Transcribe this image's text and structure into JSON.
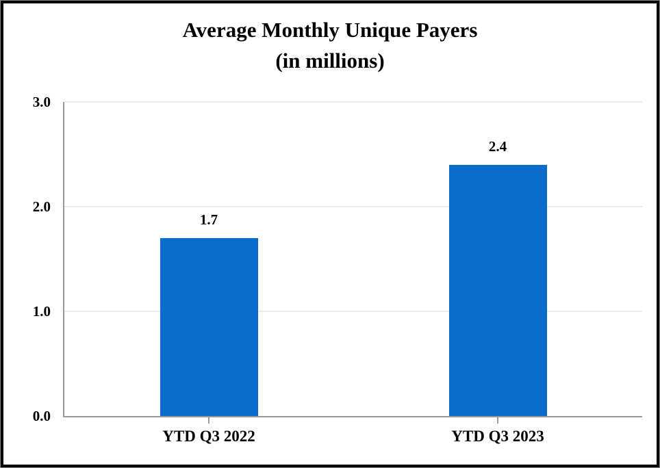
{
  "chart_data": {
    "type": "bar",
    "title": "Average Monthly Unique Payers",
    "subtitle": "(in millions)",
    "categories": [
      "YTD Q3 2022",
      "YTD Q3 2023"
    ],
    "values": [
      1.7,
      2.4
    ],
    "value_labels": [
      "1.7",
      "2.4"
    ],
    "xlabel": "",
    "ylabel": "",
    "ylim": [
      0,
      3.0
    ],
    "y_ticks": [
      0.0,
      1.0,
      2.0,
      3.0
    ],
    "y_tick_labels": [
      "0.0",
      "1.0",
      "2.0",
      "3.0"
    ],
    "grid": "horizontal-only",
    "legend": "none"
  },
  "colors": {
    "bar": "#0b6dcb",
    "axis": "#999999",
    "gridline": "#ececec",
    "text": "#000000",
    "frame_border": "#000000",
    "background": "#ffffff"
  }
}
